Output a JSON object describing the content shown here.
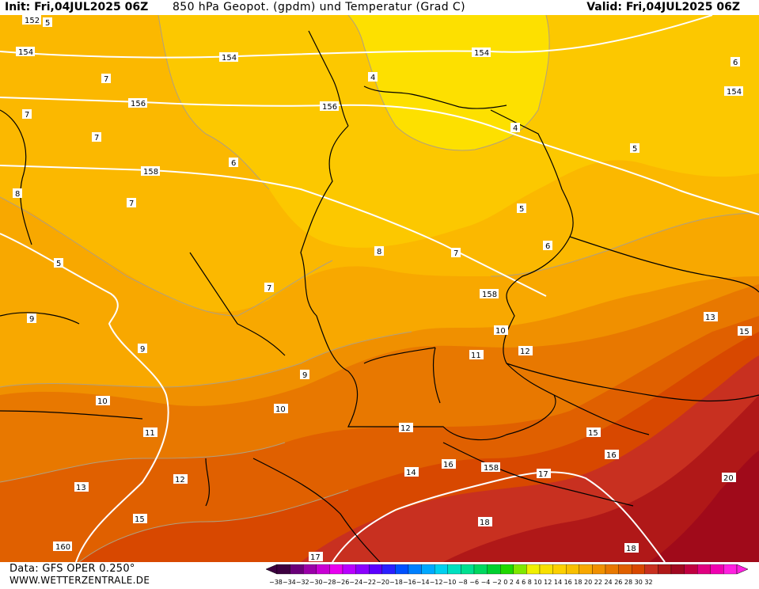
{
  "header": {
    "init": "Init: Fri,04JUL2025 06Z",
    "title": "850 hPa Geopot. (gpdm) und Temperatur (Grad C)",
    "valid": "Valid: Fri,04JUL2025 06Z"
  },
  "footer": {
    "source": "Data: GFS OPER 0.250°",
    "website": "WWW.WETTERZENTRALE.DE"
  },
  "legend": {
    "ticks": [
      "-38",
      "-36",
      "-34",
      "-32",
      "-30",
      "-28",
      "-26",
      "-24",
      "-22",
      "-20",
      "-18",
      "-16",
      "-14",
      "-12",
      "-10",
      "-8",
      "-6",
      "-4",
      "-2",
      "0",
      "2",
      "4",
      "6",
      "8",
      "10",
      "12",
      "14",
      "16",
      "18",
      "20",
      "22",
      "24",
      "26",
      "28",
      "30",
      "32"
    ],
    "tick_text": "−38−34−32−30−28−26−24−22−20−18−16−14−12−10 −8 −6 −4 −2  0  2  4  6  8  10 12 14 16 18 20 22 24 26 28 30 32",
    "colors": [
      "#3d0040",
      "#6a0078",
      "#9a00a8",
      "#c800d4",
      "#e800f0",
      "#b800ff",
      "#8a00ff",
      "#5a00ff",
      "#2a20ff",
      "#0050ff",
      "#0080ff",
      "#00a8ff",
      "#00d0f0",
      "#00e0c0",
      "#00e090",
      "#00d860",
      "#00d030",
      "#20d800",
      "#80e800",
      "#f0f000",
      "#f8e000",
      "#fcd000",
      "#f8c000",
      "#f8a800",
      "#f09000",
      "#e87800",
      "#e06000",
      "#d84800",
      "#c83020",
      "#b01818",
      "#a00820",
      "#c00040",
      "#e00080",
      "#f000b0",
      "#ff20e0"
    ]
  },
  "geopotential_labels": [
    "152",
    "154",
    "154",
    "154",
    "154",
    "156",
    "156",
    "158",
    "158",
    "158",
    "160"
  ],
  "temperature_labels": [
    "5",
    "6",
    "7",
    "7",
    "7",
    "7",
    "6",
    "8",
    "7",
    "5",
    "5",
    "9",
    "9",
    "10",
    "10",
    "11",
    "12",
    "13",
    "15",
    "15",
    "16",
    "17",
    "18",
    "20",
    "4",
    "4",
    "5",
    "6",
    "7",
    "8",
    "9",
    "10",
    "11",
    "12",
    "12",
    "13",
    "14",
    "15",
    "16",
    "17",
    "18"
  ],
  "colors": {
    "t_4": "#fcd600",
    "t_6": "#f8c000",
    "t_8": "#f8a800",
    "t_10": "#f09000",
    "t_12": "#e87800",
    "t_14": "#e06000",
    "t_16": "#d84800",
    "t_18": "#c83020",
    "t_20": "#b01818"
  }
}
